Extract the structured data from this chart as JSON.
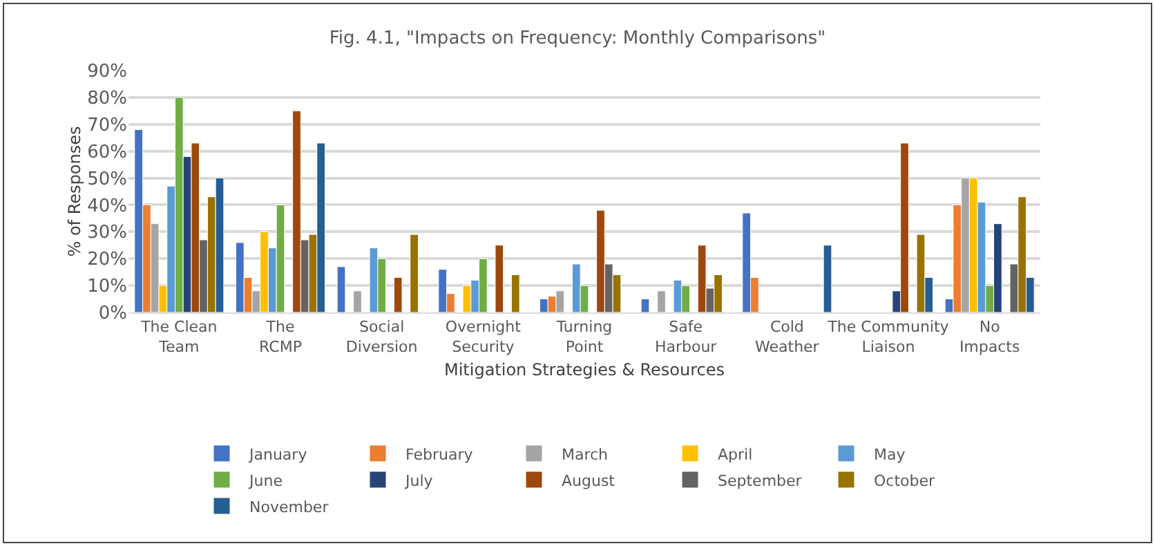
{
  "chart_data": {
    "type": "bar",
    "title": "Fig. 4.1, \"Impacts on Frequency: Monthly Comparisons\"",
    "xlabel": "Mitigation Strategies & Resources",
    "ylabel": "% of Responses",
    "categories": [
      "The Clean Team",
      "The RCMP",
      "Social Diversion",
      "Overnight Security",
      "Turning Point",
      "Safe Harbour",
      "Cold Weather",
      "The Community Liaison",
      "No Impacts"
    ],
    "series": [
      {
        "name": "January",
        "color": "#4472c4",
        "values": [
          68,
          26,
          17,
          16,
          5,
          5,
          37,
          null,
          5
        ]
      },
      {
        "name": "February",
        "color": "#ed7d31",
        "values": [
          40,
          13,
          null,
          7,
          6,
          null,
          13,
          null,
          40
        ]
      },
      {
        "name": "March",
        "color": "#a5a5a5",
        "values": [
          33,
          8,
          8,
          null,
          8,
          8,
          null,
          null,
          50
        ]
      },
      {
        "name": "April",
        "color": "#ffc000",
        "values": [
          10,
          30,
          null,
          10,
          null,
          null,
          null,
          null,
          50
        ]
      },
      {
        "name": "May",
        "color": "#5b9bd5",
        "values": [
          47,
          24,
          24,
          12,
          18,
          12,
          null,
          null,
          41
        ]
      },
      {
        "name": "June",
        "color": "#70ad47",
        "values": [
          80,
          40,
          20,
          20,
          10,
          10,
          null,
          null,
          10
        ]
      },
      {
        "name": "July",
        "color": "#264478",
        "values": [
          58,
          null,
          null,
          null,
          null,
          null,
          null,
          8,
          33
        ]
      },
      {
        "name": "August",
        "color": "#9e480e",
        "values": [
          63,
          75,
          13,
          25,
          38,
          25,
          null,
          63,
          null
        ]
      },
      {
        "name": "September",
        "color": "#636363",
        "values": [
          27,
          27,
          null,
          null,
          18,
          9,
          null,
          null,
          18
        ]
      },
      {
        "name": "October",
        "color": "#997300",
        "values": [
          43,
          29,
          29,
          14,
          14,
          14,
          null,
          29,
          43
        ]
      },
      {
        "name": "November",
        "color": "#255e91",
        "values": [
          50,
          63,
          null,
          null,
          null,
          null,
          25,
          13,
          13
        ]
      }
    ],
    "ylim": [
      0,
      90
    ],
    "yticks": [
      {
        "value": 0,
        "label": "0%"
      },
      {
        "value": 10,
        "label": "10%"
      },
      {
        "value": 20,
        "label": "20%"
      },
      {
        "value": 30,
        "label": "30%"
      },
      {
        "value": 40,
        "label": "40%"
      },
      {
        "value": 50,
        "label": "50%"
      },
      {
        "value": 60,
        "label": "60%"
      },
      {
        "value": 70,
        "label": "70%"
      },
      {
        "value": 80,
        "label": "80%"
      },
      {
        "value": 90,
        "label": "90%"
      }
    ],
    "grid": "y",
    "legend": "bottom"
  }
}
